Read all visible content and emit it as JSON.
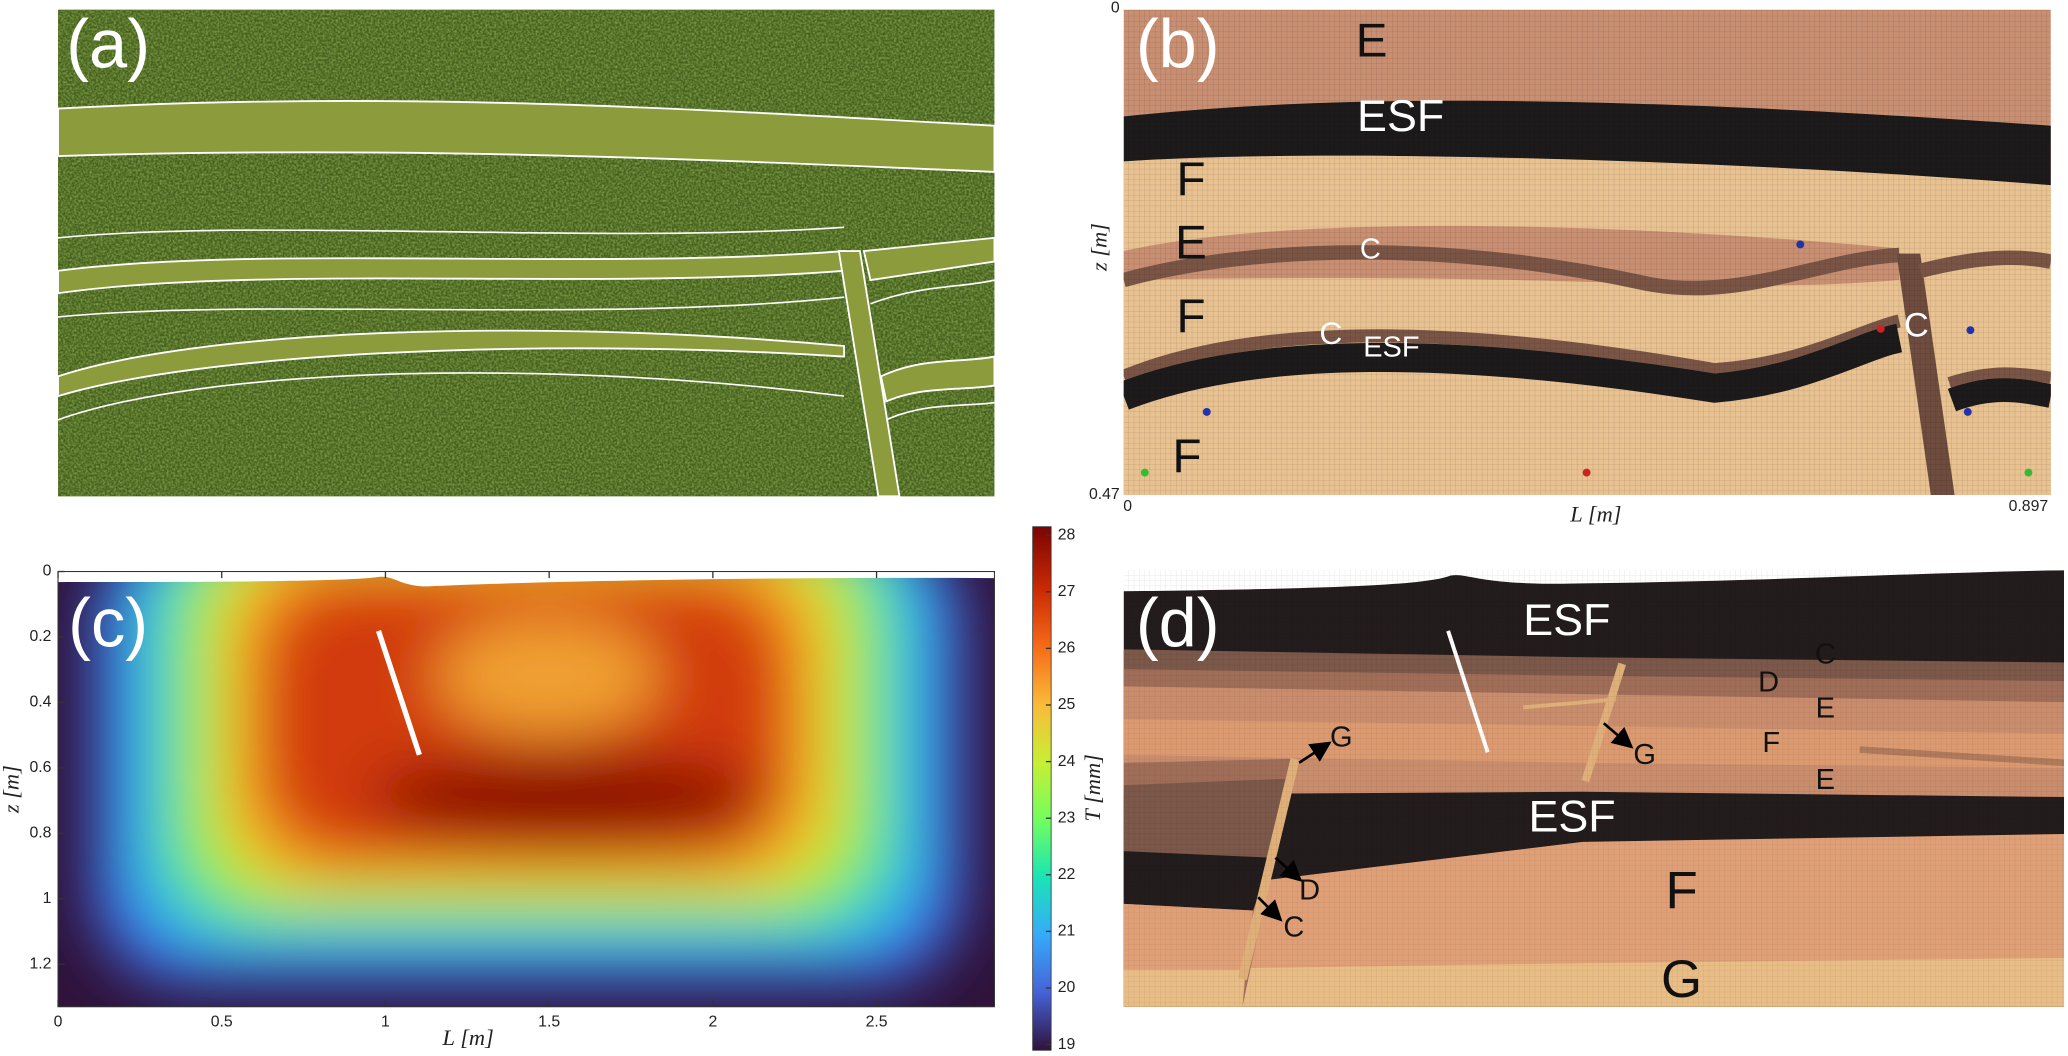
{
  "panel_a": {
    "label": "(a)"
  },
  "panel_b": {
    "label": "(b)",
    "layer_labels": [
      "E",
      "ESF",
      "F",
      "E",
      "C",
      "F",
      "C",
      "ESF",
      "C",
      "F"
    ],
    "z_range": [
      0,
      0.47
    ],
    "L_range": [
      0,
      0.897
    ],
    "xlabel": "L [m]",
    "ylabel": "z [m]"
  },
  "panel_c": {
    "label": "(c)",
    "xlim": [
      0,
      2.86
    ],
    "xticks": [
      0,
      0.5,
      1,
      1.5,
      2,
      2.5
    ],
    "ylim": [
      0,
      1.33
    ],
    "yticks": [
      0,
      0.2,
      0.4,
      0.6,
      0.8,
      1,
      1.2
    ],
    "xlabel": "L [m]",
    "ylabel": "z [m]",
    "colorbar": {
      "clim": [
        18.9,
        28.15
      ],
      "ticks": [
        19,
        20,
        21,
        22,
        23,
        24,
        25,
        26,
        27,
        28
      ],
      "label": "T [mm]"
    }
  },
  "panel_d": {
    "label": "(d)",
    "layer_labels": [
      "ESF",
      "C",
      "D",
      "E",
      "F",
      "E",
      "ESF",
      "F",
      "G",
      "G",
      "G",
      "D",
      "C"
    ]
  }
}
